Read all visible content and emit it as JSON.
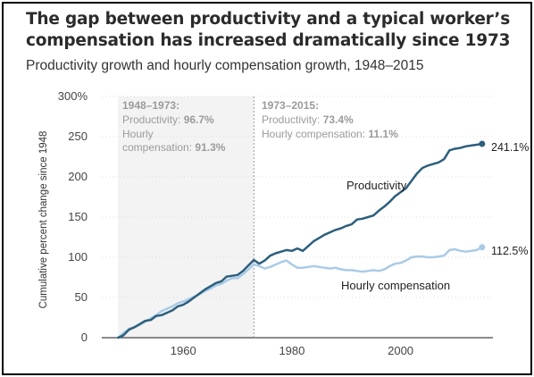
{
  "title": "The gap between productivity and a typical worker’s compensation has increased dramatically since 1973",
  "subtitle": "Productivity growth and hourly compensation growth, 1948–2015",
  "colors": {
    "productivity": "#2c5f7c",
    "compensation": "#a9cbe6",
    "annotation": "#9b9b9b",
    "period1_fill": "#f3f3f3"
  },
  "annotations": {
    "period1": {
      "heading": "1948–1973:",
      "line1_label": "Productivity: ",
      "line1_value": "96.7%",
      "line2": "Hourly",
      "line3_label": "compensation: ",
      "line3_value": "91.3%"
    },
    "period2": {
      "heading": "1973–2015:",
      "line1_label": "Productivity: ",
      "line1_value": "73.4%",
      "line2_label": "Hourly compensation: ",
      "line2_value": "11.1%"
    }
  },
  "chart_data": {
    "type": "line",
    "ylabel": "Cumulative percent change since 1948",
    "xlabel": "",
    "xlim": [
      1945,
      2017
    ],
    "ylim": [
      0,
      300
    ],
    "xticks": [
      1960,
      1980,
      2000
    ],
    "yticks": [
      0,
      50,
      100,
      150,
      200,
      250,
      300
    ],
    "ytick_labels": [
      "0",
      "50",
      "100",
      "150",
      "200",
      "250",
      "300%"
    ],
    "grid": "horizontal",
    "divider_year": 1973,
    "series": [
      {
        "name": "Productivity",
        "end_label": "241.1%",
        "x": [
          1948,
          1949,
          1950,
          1951,
          1952,
          1953,
          1954,
          1955,
          1956,
          1957,
          1958,
          1959,
          1960,
          1961,
          1962,
          1963,
          1964,
          1965,
          1966,
          1967,
          1968,
          1969,
          1970,
          1971,
          1972,
          1973,
          1974,
          1975,
          1976,
          1977,
          1978,
          1979,
          1980,
          1981,
          1982,
          1983,
          1984,
          1985,
          1986,
          1987,
          1988,
          1989,
          1990,
          1991,
          1992,
          1993,
          1994,
          1995,
          1996,
          1997,
          1998,
          1999,
          2000,
          2001,
          2002,
          2003,
          2004,
          2005,
          2006,
          2007,
          2008,
          2009,
          2010,
          2011,
          2012,
          2013,
          2014,
          2015
        ],
        "values": [
          0,
          3,
          10,
          13,
          17,
          21,
          22,
          27,
          28,
          31,
          34,
          39,
          41,
          45,
          50,
          55,
          60,
          64,
          68,
          70,
          76,
          77,
          78,
          83,
          90,
          96.7,
          92,
          96,
          102,
          105,
          107,
          109,
          108,
          111,
          108,
          114,
          120,
          124,
          128,
          131,
          134,
          136,
          139,
          141,
          147,
          148,
          150,
          152,
          158,
          163,
          169,
          176,
          181,
          186,
          195,
          204,
          211,
          214,
          216,
          218,
          222,
          233,
          235,
          236,
          238,
          239,
          240,
          241.1
        ]
      },
      {
        "name": "Hourly compensation",
        "end_label": "112.5%",
        "x": [
          1948,
          1949,
          1950,
          1951,
          1952,
          1953,
          1954,
          1955,
          1956,
          1957,
          1958,
          1959,
          1960,
          1961,
          1962,
          1963,
          1964,
          1965,
          1966,
          1967,
          1968,
          1969,
          1970,
          1971,
          1972,
          1973,
          1974,
          1975,
          1976,
          1977,
          1978,
          1979,
          1980,
          1981,
          1982,
          1983,
          1984,
          1985,
          1986,
          1987,
          1988,
          1989,
          1990,
          1991,
          1992,
          1993,
          1994,
          1995,
          1996,
          1997,
          1998,
          1999,
          2000,
          2001,
          2002,
          2003,
          2004,
          2005,
          2006,
          2007,
          2008,
          2009,
          2010,
          2011,
          2012,
          2013,
          2014,
          2015
        ],
        "values": [
          0,
          6,
          11,
          13,
          16,
          20,
          24,
          28,
          33,
          36,
          39,
          43,
          45,
          48,
          51,
          54,
          58,
          61,
          65,
          67,
          71,
          74,
          74,
          79,
          85,
          91.3,
          89,
          86,
          88,
          91,
          94,
          96,
          91,
          87,
          87,
          88,
          89,
          88,
          87,
          86,
          87,
          85,
          84,
          84,
          83,
          82,
          83,
          84,
          83,
          85,
          89,
          92,
          93,
          96,
          100,
          101,
          101,
          100,
          100,
          101,
          102,
          109,
          110,
          108,
          107,
          108,
          109,
          112.5
        ]
      }
    ]
  }
}
